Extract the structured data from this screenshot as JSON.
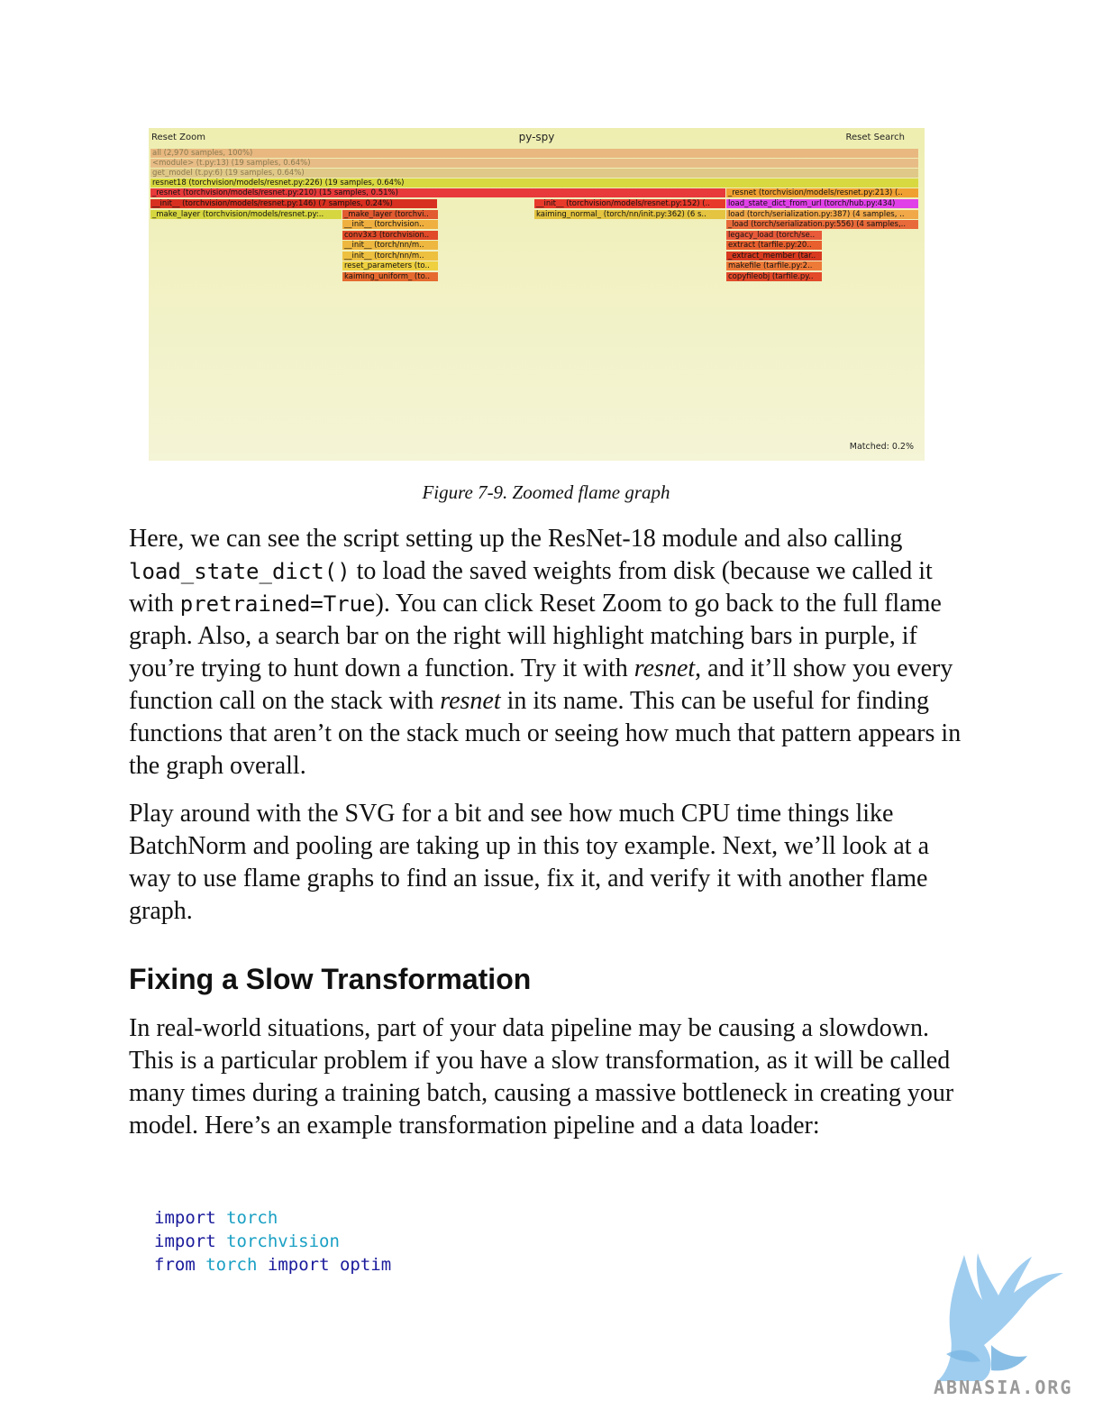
{
  "figure": {
    "reset_zoom": "Reset Zoom",
    "title": "py-spy",
    "reset_search": "Reset Search",
    "matched": "Matched: 0.2%",
    "bars": [
      "all (2,970 samples, 100%)",
      "<module> (t.py:13) (19 samples, 0.64%)",
      "get_model (t.py:6) (19 samples, 0.64%)",
      "resnet18 (torchvision/models/resnet.py:226) (19 samples, 0.64%)",
      "_resnet (torchvision/models/resnet.py:210) (15 samples, 0.51%)",
      "_resnet (torchvision/models/resnet.py:213) (..",
      "__init__ (torchvision/models/resnet.py:146) (7 samples, 0.24%)",
      "__init__ (torchvision/models/resnet.py:152) (..",
      "load_state_dict_from_url (torch/hub.py:434)",
      "_make_layer (torchvision/models/resnet.py:..",
      "_make_layer (torchvi..",
      "kaiming_normal_ (torch/nn/init.py:362) (6 s..",
      "load (torch/serialization.py:387) (4 samples, ..",
      "__init__ (torchvision..",
      "_load (torch/serialization.py:556) (4 samples,..",
      "conv3x3 (torchvision..",
      "legacy_load (torch/se..",
      "__init__ (torch/nn/m..",
      "extract (tarfile.py:20..",
      "__init__ (torch/nn/m..",
      "_extract_member (tar..",
      "reset_parameters (to..",
      "makefile (tarfile.py:2..",
      "kaiming_uniform_ (to..",
      "copyfileobj (tarfile.py.."
    ],
    "colors": {
      "background": "#f1f1c2",
      "search_highlight": "#e040e8",
      "hot": "#e83a2a",
      "warm": "#f0a030",
      "cool": "#e4d440"
    }
  },
  "caption": "Figure 7-9. Zoomed flame graph",
  "p1": {
    "t1": "Here, we can see the script setting up the ResNet-18 module and also calling ",
    "c1": "load_state_dict()",
    "t2": " to load the saved weights from disk (because we called it with ",
    "c2": "pretrained=True",
    "t3": "). You can click Reset Zoom to go back to the full flame graph. Also, a search bar on the right will highlight matching bars in purple, if you’re trying to hunt down a function. Try it with ",
    "e1": "resnet",
    "t4": ", and it’ll show you every function call on the stack with ",
    "e2": "resnet",
    "t5": " in its name. This can be useful for finding functions that aren’t on the stack much or seeing how much that pattern appears in the graph overall."
  },
  "p2": "Play around with the SVG for a bit and see how much CPU time things like BatchNorm and pooling are taking up in this toy example. Next, we’ll look at a way to use flame graphs to find an issue, fix it, and verify it with another flame graph.",
  "heading": "Fixing a Slow Transformation",
  "p3": "In real-world situations, part of your data pipeline may be causing a slowdown. This is a particular problem if you have a slow transformation, as it will be called many times during a training batch, causing a massive bottleneck in creating your model. Here’s an example transformation pipeline and a data loader:",
  "code": {
    "l1": {
      "kw": "import",
      "mod": "torch"
    },
    "l2": {
      "kw": "import",
      "mod": "torchvision"
    },
    "l3": {
      "kw1": "from",
      "mod": "torch",
      "kw2": "import",
      "name": "optim"
    }
  },
  "watermark": "ABNASIA.ORG"
}
